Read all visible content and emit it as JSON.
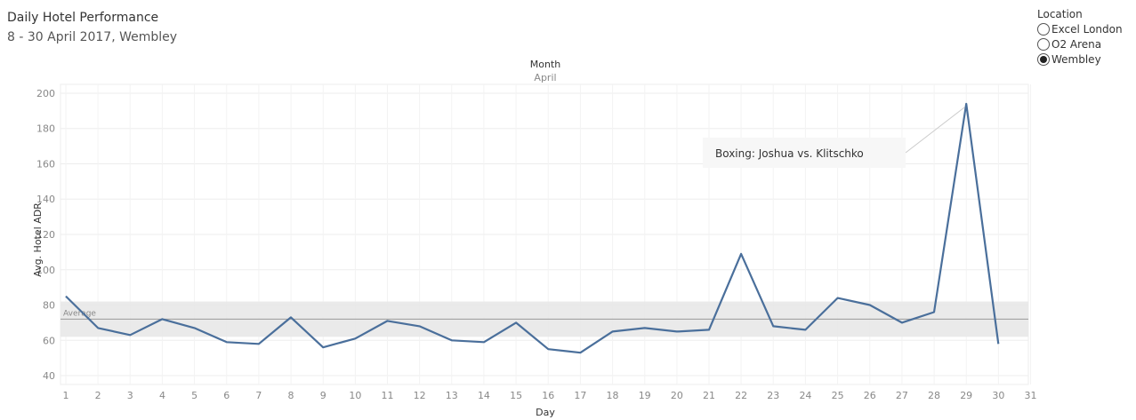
{
  "header": {
    "title": "Daily Hotel Performance",
    "subtitle": "8 - 30 April 2017, Wembley"
  },
  "legend": {
    "title": "Location",
    "items": [
      {
        "label": "Excel London",
        "selected": false
      },
      {
        "label": "O2 Arena",
        "selected": false
      },
      {
        "label": "Wembley",
        "selected": true
      }
    ]
  },
  "colors": {
    "line": "#4a6f9b",
    "band": "#e6e6e6",
    "avg": "#999999",
    "grid": "#ededed"
  },
  "chart_data": {
    "type": "line",
    "column_header": "Month",
    "column_value": "April",
    "xlabel": "Day",
    "ylabel": "Avg. Hotel ADR",
    "x": [
      1,
      2,
      3,
      4,
      5,
      6,
      7,
      8,
      9,
      10,
      11,
      12,
      13,
      14,
      15,
      16,
      17,
      18,
      19,
      20,
      21,
      22,
      23,
      24,
      25,
      26,
      27,
      28,
      29,
      30,
      31
    ],
    "series": [
      {
        "values": [
          85,
          67,
          63,
          72,
          67,
          59,
          58,
          73,
          56,
          61,
          71,
          68,
          60,
          59,
          70,
          55,
          53,
          65,
          67,
          65,
          66,
          109,
          68,
          66,
          84,
          80,
          70,
          76,
          194,
          58,
          null
        ]
      }
    ],
    "xlim": [
      1,
      31
    ],
    "ylim": [
      35,
      205
    ],
    "yticks": [
      40,
      60,
      80,
      100,
      120,
      140,
      160,
      180,
      200
    ],
    "reference_line": {
      "label": "Average",
      "value": 72,
      "band": [
        62,
        82
      ]
    },
    "annotation": {
      "text": "Boxing: Joshua vs. Klitschko",
      "x": 29,
      "y": 194
    },
    "grid": true
  }
}
